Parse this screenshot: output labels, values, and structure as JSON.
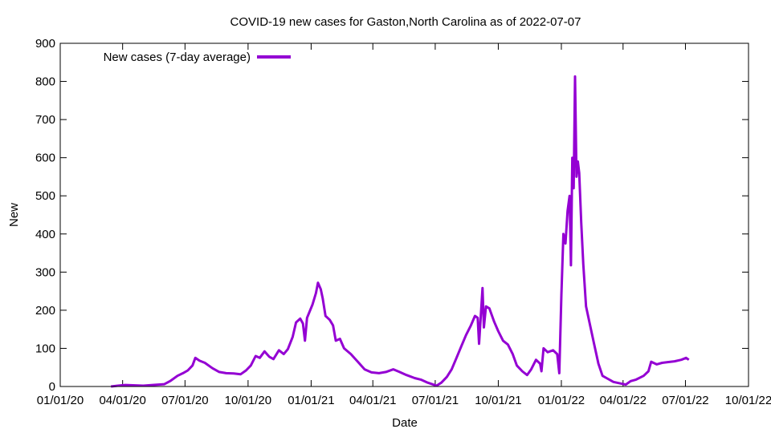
{
  "chart_data": {
    "type": "line",
    "title": "COVID-19 new cases for Gaston,North Carolina as of 2022-07-07",
    "xlabel": "Date",
    "ylabel": "New",
    "xlim": [
      "2020-01-01",
      "2022-10-01"
    ],
    "ylim": [
      0,
      900
    ],
    "x_ticks": [
      "01/01/20",
      "04/01/20",
      "07/01/20",
      "10/01/20",
      "01/01/21",
      "04/01/21",
      "07/01/21",
      "10/01/21",
      "01/01/22",
      "04/01/22",
      "07/01/22",
      "10/01/22"
    ],
    "y_ticks": [
      0,
      100,
      200,
      300,
      400,
      500,
      600,
      700,
      800,
      900
    ],
    "grid": false,
    "legend": {
      "position": "top-left",
      "entries": [
        "New cases (7-day average)"
      ]
    },
    "colors": {
      "series": "#9400d3",
      "axes": "#000000",
      "background": "#ffffff"
    },
    "series": [
      {
        "name": "New cases (7-day average)",
        "points": [
          [
            "2020-03-15",
            0
          ],
          [
            "2020-03-25",
            2
          ],
          [
            "2020-04-05",
            4
          ],
          [
            "2020-04-20",
            3
          ],
          [
            "2020-05-01",
            2
          ],
          [
            "2020-05-15",
            4
          ],
          [
            "2020-06-01",
            6
          ],
          [
            "2020-06-10",
            15
          ],
          [
            "2020-06-20",
            28
          ],
          [
            "2020-06-28",
            35
          ],
          [
            "2020-07-05",
            42
          ],
          [
            "2020-07-12",
            55
          ],
          [
            "2020-07-16",
            75
          ],
          [
            "2020-07-22",
            68
          ],
          [
            "2020-07-30",
            62
          ],
          [
            "2020-08-10",
            48
          ],
          [
            "2020-08-20",
            38
          ],
          [
            "2020-08-30",
            35
          ],
          [
            "2020-09-10",
            34
          ],
          [
            "2020-09-20",
            32
          ],
          [
            "2020-09-28",
            42
          ],
          [
            "2020-10-05",
            55
          ],
          [
            "2020-10-12",
            80
          ],
          [
            "2020-10-18",
            75
          ],
          [
            "2020-10-25",
            92
          ],
          [
            "2020-11-01",
            78
          ],
          [
            "2020-11-07",
            72
          ],
          [
            "2020-11-15",
            95
          ],
          [
            "2020-11-22",
            85
          ],
          [
            "2020-11-28",
            98
          ],
          [
            "2020-12-05",
            130
          ],
          [
            "2020-12-10",
            168
          ],
          [
            "2020-12-16",
            178
          ],
          [
            "2020-12-20",
            165
          ],
          [
            "2020-12-23",
            120
          ],
          [
            "2020-12-26",
            180
          ],
          [
            "2021-01-03",
            215
          ],
          [
            "2021-01-08",
            245
          ],
          [
            "2021-01-11",
            272
          ],
          [
            "2021-01-15",
            255
          ],
          [
            "2021-01-18",
            230
          ],
          [
            "2021-01-22",
            185
          ],
          [
            "2021-01-28",
            175
          ],
          [
            "2021-02-02",
            160
          ],
          [
            "2021-02-06",
            120
          ],
          [
            "2021-02-12",
            125
          ],
          [
            "2021-02-18",
            100
          ],
          [
            "2021-02-28",
            85
          ],
          [
            "2021-03-10",
            65
          ],
          [
            "2021-03-20",
            45
          ],
          [
            "2021-03-30",
            37
          ],
          [
            "2021-04-10",
            35
          ],
          [
            "2021-04-20",
            38
          ],
          [
            "2021-05-01",
            45
          ],
          [
            "2021-05-10",
            38
          ],
          [
            "2021-05-20",
            30
          ],
          [
            "2021-06-01",
            22
          ],
          [
            "2021-06-10",
            18
          ],
          [
            "2021-06-20",
            10
          ],
          [
            "2021-06-28",
            5
          ],
          [
            "2021-07-03",
            2
          ],
          [
            "2021-07-10",
            10
          ],
          [
            "2021-07-18",
            25
          ],
          [
            "2021-07-25",
            45
          ],
          [
            "2021-08-01",
            75
          ],
          [
            "2021-08-08",
            105
          ],
          [
            "2021-08-15",
            135
          ],
          [
            "2021-08-22",
            160
          ],
          [
            "2021-08-28",
            185
          ],
          [
            "2021-09-01",
            180
          ],
          [
            "2021-09-03",
            112
          ],
          [
            "2021-09-06",
            200
          ],
          [
            "2021-09-08",
            258
          ],
          [
            "2021-09-10",
            155
          ],
          [
            "2021-09-13",
            210
          ],
          [
            "2021-09-18",
            205
          ],
          [
            "2021-09-25",
            170
          ],
          [
            "2021-10-01",
            145
          ],
          [
            "2021-10-08",
            120
          ],
          [
            "2021-10-15",
            110
          ],
          [
            "2021-10-22",
            85
          ],
          [
            "2021-10-28",
            55
          ],
          [
            "2021-11-05",
            40
          ],
          [
            "2021-11-12",
            30
          ],
          [
            "2021-11-18",
            45
          ],
          [
            "2021-11-25",
            70
          ],
          [
            "2021-12-01",
            60
          ],
          [
            "2021-12-03",
            40
          ],
          [
            "2021-12-06",
            100
          ],
          [
            "2021-12-12",
            90
          ],
          [
            "2021-12-20",
            95
          ],
          [
            "2021-12-26",
            85
          ],
          [
            "2021-12-29",
            35
          ],
          [
            "2022-01-01",
            240
          ],
          [
            "2022-01-04",
            400
          ],
          [
            "2022-01-07",
            375
          ],
          [
            "2022-01-10",
            460
          ],
          [
            "2022-01-13",
            500
          ],
          [
            "2022-01-15",
            318
          ],
          [
            "2022-01-17",
            600
          ],
          [
            "2022-01-19",
            520
          ],
          [
            "2022-01-21",
            813
          ],
          [
            "2022-01-23",
            550
          ],
          [
            "2022-01-25",
            590
          ],
          [
            "2022-01-27",
            560
          ],
          [
            "2022-01-30",
            430
          ],
          [
            "2022-02-02",
            320
          ],
          [
            "2022-02-06",
            210
          ],
          [
            "2022-02-12",
            160
          ],
          [
            "2022-02-18",
            110
          ],
          [
            "2022-02-24",
            60
          ],
          [
            "2022-03-02",
            28
          ],
          [
            "2022-03-10",
            20
          ],
          [
            "2022-03-18",
            12
          ],
          [
            "2022-03-28",
            8
          ],
          [
            "2022-04-05",
            5
          ],
          [
            "2022-04-12",
            14
          ],
          [
            "2022-04-20",
            18
          ],
          [
            "2022-05-01",
            28
          ],
          [
            "2022-05-08",
            40
          ],
          [
            "2022-05-12",
            65
          ],
          [
            "2022-05-20",
            58
          ],
          [
            "2022-05-28",
            62
          ],
          [
            "2022-06-05",
            64
          ],
          [
            "2022-06-15",
            66
          ],
          [
            "2022-06-25",
            70
          ],
          [
            "2022-07-02",
            75
          ],
          [
            "2022-07-06",
            70
          ]
        ]
      }
    ]
  }
}
